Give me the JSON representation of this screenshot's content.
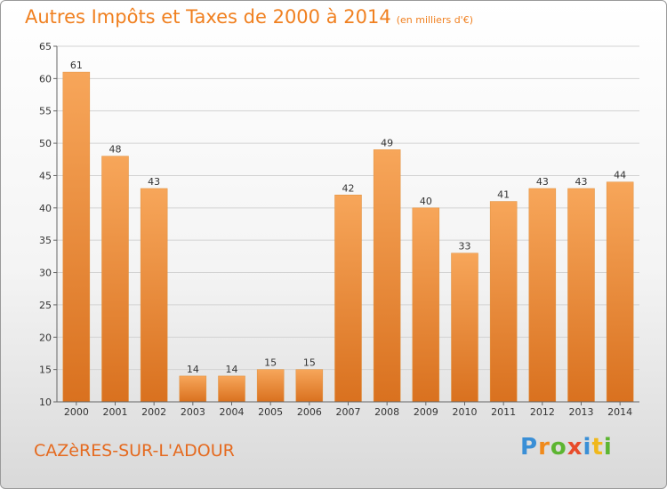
{
  "title": "Autres Impôts et Taxes de 2000 à 2014",
  "subtitle": "(en milliers d'€)",
  "city": "CAZèRES-SUR-L'ADOUR",
  "logo": {
    "letters": [
      "P",
      "r",
      "o",
      "x",
      "i",
      "t",
      "i"
    ],
    "colors": [
      "#3a8fd6",
      "#f08a1c",
      "#5cb531",
      "#e84c2b",
      "#3a8fd6",
      "#f0b81c",
      "#5cb531"
    ]
  },
  "colors": {
    "title": "#f08020",
    "bar_top": "#f7a65a",
    "bar_bottom": "#d9711f",
    "grid": "#d3d3d3"
  },
  "chart_data": {
    "type": "bar",
    "title": "Autres Impôts et Taxes de 2000 à 2014",
    "subtitle": "(en milliers d'€)",
    "categories": [
      "2000",
      "2001",
      "2002",
      "2003",
      "2004",
      "2005",
      "2006",
      "2007",
      "2008",
      "2009",
      "2010",
      "2011",
      "2012",
      "2013",
      "2014"
    ],
    "values": [
      61,
      48,
      43,
      14,
      14,
      15,
      15,
      42,
      49,
      40,
      33,
      41,
      43,
      43,
      44
    ],
    "ylim": [
      10,
      65
    ],
    "yticks": [
      10,
      15,
      20,
      25,
      30,
      35,
      40,
      45,
      50,
      55,
      60,
      65
    ],
    "grid": true,
    "xlabel": "",
    "ylabel": ""
  }
}
